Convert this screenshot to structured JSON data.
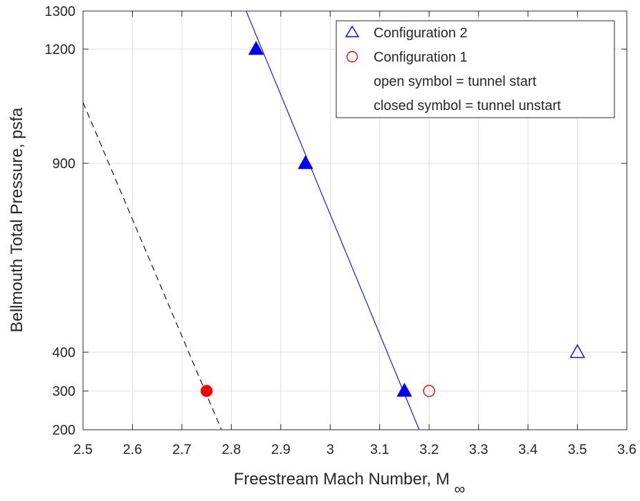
{
  "chart_data": {
    "type": "scatter",
    "xlabel": "Freestream Mach Number, M",
    "xlabel_subscript": "∞",
    "ylabel": "Bellmouth Total Pressure, psfa",
    "xlim": [
      2.5,
      3.6
    ],
    "ylim": [
      200,
      1300
    ],
    "x_ticks": [
      2.5,
      2.6,
      2.7,
      2.8,
      2.9,
      3.0,
      3.1,
      3.2,
      3.3,
      3.4,
      3.5,
      3.6
    ],
    "x_tick_labels": [
      "2.5",
      "2.6",
      "2.7",
      "2.8",
      "2.9",
      "3",
      "3.1",
      "3.2",
      "3.3",
      "3.4",
      "3.5",
      "3.6"
    ],
    "y_ticks": [
      200,
      300,
      400,
      900,
      1200,
      1300
    ],
    "y_tick_labels": [
      "200",
      "300",
      "400",
      "900",
      "1200",
      "1300"
    ],
    "grid": true,
    "legend_position": "top-right",
    "series": [
      {
        "name": "Configuration 2",
        "marker": "triangle",
        "color": "#0000ff",
        "points": [
          {
            "x": 2.85,
            "y": 1200,
            "filled": true
          },
          {
            "x": 2.95,
            "y": 900,
            "filled": true
          },
          {
            "x": 3.15,
            "y": 300,
            "filled": true
          },
          {
            "x": 3.5,
            "y": 400,
            "filled": false
          }
        ]
      },
      {
        "name": "Configuration 1",
        "marker": "circle",
        "color": "#ff0000",
        "points": [
          {
            "x": 2.75,
            "y": 300,
            "filled": true
          },
          {
            "x": 3.2,
            "y": 300,
            "filled": false
          }
        ]
      }
    ],
    "lines": [
      {
        "id": "blue-fit-line",
        "style": "solid",
        "color": "#0000ff",
        "points": [
          [
            2.83,
            1300
          ],
          [
            3.18,
            200
          ]
        ]
      },
      {
        "id": "black-dashed-line",
        "style": "dashed",
        "color": "#000000",
        "points": [
          [
            2.5,
            1060
          ],
          [
            2.78,
            200
          ]
        ]
      }
    ],
    "legend_notes": [
      "open symbol = tunnel start",
      "closed symbol = tunnel unstart"
    ]
  }
}
